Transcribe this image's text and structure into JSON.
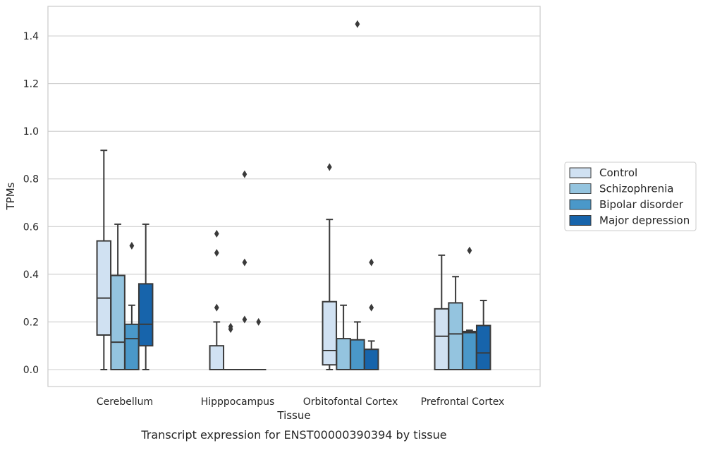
{
  "caption": "Transcript expression for ENST00000390394 by tissue",
  "chart_data": {
    "type": "box",
    "xlabel": "Tissue",
    "ylabel": "TPMs",
    "ylim": [
      -0.07,
      1.53
    ],
    "yticks": [
      0.0,
      0.2,
      0.4,
      0.6,
      0.8,
      1.0,
      1.2,
      1.4
    ],
    "ytick_labels": [
      "0.0",
      "0.2",
      "0.4",
      "0.6",
      "0.8",
      "1.0",
      "1.2",
      "1.4"
    ],
    "categories": [
      "Cerebellum",
      "Hipppocampus",
      "Orbitofontal Cortex",
      "Prefrontal Cortex"
    ],
    "grid": "horizontal",
    "legend_position": "right",
    "series": [
      {
        "name": "Control",
        "color": "#d0e1f2",
        "boxes": [
          {
            "min": 0.0,
            "q1": 0.145,
            "median": 0.3,
            "q3": 0.54,
            "max": 0.92,
            "outliers": []
          },
          {
            "min": 0.0,
            "q1": 0.0,
            "median": 0.0,
            "q3": 0.1,
            "max": 0.2,
            "outliers": [
              0.26,
              0.49,
              0.57
            ]
          },
          {
            "min": 0.0,
            "q1": 0.02,
            "median": 0.08,
            "q3": 0.285,
            "max": 0.63,
            "outliers": [
              0.85
            ]
          },
          {
            "min": 0.0,
            "q1": 0.0,
            "median": 0.14,
            "q3": 0.255,
            "max": 0.48,
            "outliers": []
          }
        ]
      },
      {
        "name": "Schizophrenia",
        "color": "#94c4df",
        "boxes": [
          {
            "min": 0.0,
            "q1": 0.0,
            "median": 0.115,
            "q3": 0.395,
            "max": 0.61,
            "outliers": []
          },
          {
            "min": 0.0,
            "q1": 0.0,
            "median": 0.0,
            "q3": 0.0,
            "max": 0.0,
            "outliers": [
              0.17,
              0.18
            ]
          },
          {
            "min": 0.0,
            "q1": 0.0,
            "median": 0.0,
            "q3": 0.13,
            "max": 0.27,
            "outliers": []
          },
          {
            "min": 0.0,
            "q1": 0.0,
            "median": 0.15,
            "q3": 0.28,
            "max": 0.39,
            "outliers": []
          }
        ]
      },
      {
        "name": "Bipolar disorder",
        "color": "#4a98c9",
        "boxes": [
          {
            "min": 0.0,
            "q1": 0.0,
            "median": 0.13,
            "q3": 0.19,
            "max": 0.27,
            "outliers": [
              0.52
            ]
          },
          {
            "min": 0.0,
            "q1": 0.0,
            "median": 0.0,
            "q3": 0.0,
            "max": 0.0,
            "outliers": [
              0.21,
              0.45,
              0.82
            ]
          },
          {
            "min": 0.0,
            "q1": 0.0,
            "median": 0.0,
            "q3": 0.125,
            "max": 0.2,
            "outliers": [
              1.45
            ]
          },
          {
            "min": 0.0,
            "q1": 0.0,
            "median": 0.155,
            "q3": 0.16,
            "max": 0.165,
            "outliers": [
              0.5
            ]
          }
        ]
      },
      {
        "name": "Major depression",
        "color": "#1764ab",
        "boxes": [
          {
            "min": 0.0,
            "q1": 0.1,
            "median": 0.19,
            "q3": 0.36,
            "max": 0.61,
            "outliers": []
          },
          {
            "min": 0.0,
            "q1": 0.0,
            "median": 0.0,
            "q3": 0.0,
            "max": 0.0,
            "outliers": [
              0.2
            ]
          },
          {
            "min": 0.0,
            "q1": 0.0,
            "median": 0.0,
            "q3": 0.085,
            "max": 0.12,
            "outliers": [
              0.26,
              0.45
            ]
          },
          {
            "min": 0.0,
            "q1": 0.0,
            "median": 0.07,
            "q3": 0.185,
            "max": 0.29,
            "outliers": []
          }
        ]
      }
    ]
  }
}
